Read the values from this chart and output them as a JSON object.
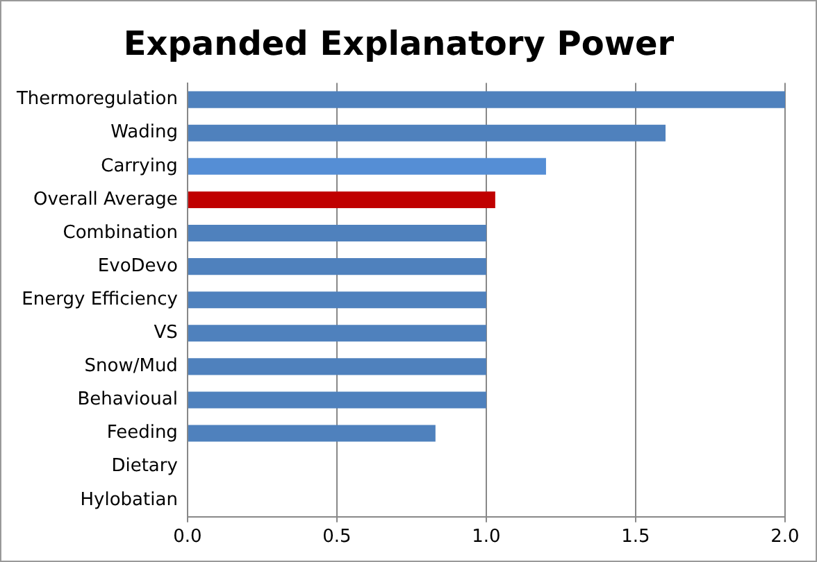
{
  "chart_data": {
    "type": "bar",
    "orientation": "horizontal",
    "title": "Expanded Explanatory Power",
    "categories": [
      "Thermoregulation",
      "Wading",
      "Carrying",
      "Overall Average",
      "Combination",
      "EvoDevo",
      "Energy Efficiency",
      "VS",
      "Snow/Mud",
      "Behavioual",
      "Feeding",
      "Dietary",
      "Hylobatian"
    ],
    "values": [
      2.0,
      1.6,
      1.2,
      1.03,
      1.0,
      1.0,
      1.0,
      1.0,
      1.0,
      1.0,
      0.83,
      0,
      0
    ],
    "colors": [
      "#4f81bd",
      "#4f81bd",
      "#558ed5",
      "#c00000",
      "#4f81bd",
      "#4f81bd",
      "#4f81bd",
      "#4f81bd",
      "#4f81bd",
      "#4f81bd",
      "#4f81bd",
      "#4f81bd",
      "#4f81bd"
    ],
    "xlim": [
      0,
      2
    ],
    "xticks": [
      {
        "value": 0,
        "label": "0.0"
      },
      {
        "value": 0.5,
        "label": "0.5"
      },
      {
        "value": 1,
        "label": "1.0"
      },
      {
        "value": 1.5,
        "label": "1.5"
      },
      {
        "value": 2,
        "label": "2.0"
      }
    ],
    "grid": "x",
    "legend": false
  }
}
